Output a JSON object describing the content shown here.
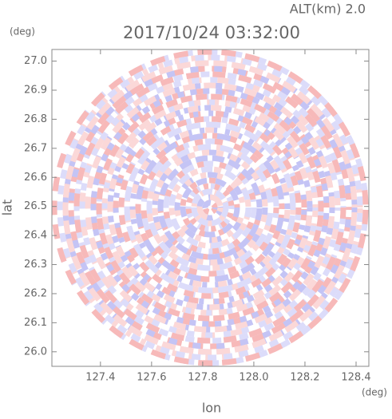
{
  "chart_data": {
    "type": "radar-image",
    "title": "2017/10/24 03:32:00",
    "subtitle": "ALT(km) 2.0",
    "x_label": "lon",
    "y_label": "lat",
    "x_unit": "(deg)",
    "y_unit": "(deg)",
    "xlim": [
      127.21,
      128.45
    ],
    "ylim": [
      25.95,
      27.04
    ],
    "xticks": [
      127.4,
      127.6,
      127.8,
      {
        "value": 128,
        "label": "128.0"
      },
      128.2,
      128.4
    ],
    "yticks": [
      {
        "value": 26,
        "label": "26.0"
      },
      26.1,
      26.2,
      26.3,
      26.4,
      26.5,
      26.6,
      26.7,
      26.8,
      26.9,
      {
        "value": 27,
        "label": "27.0"
      }
    ]
  }
}
